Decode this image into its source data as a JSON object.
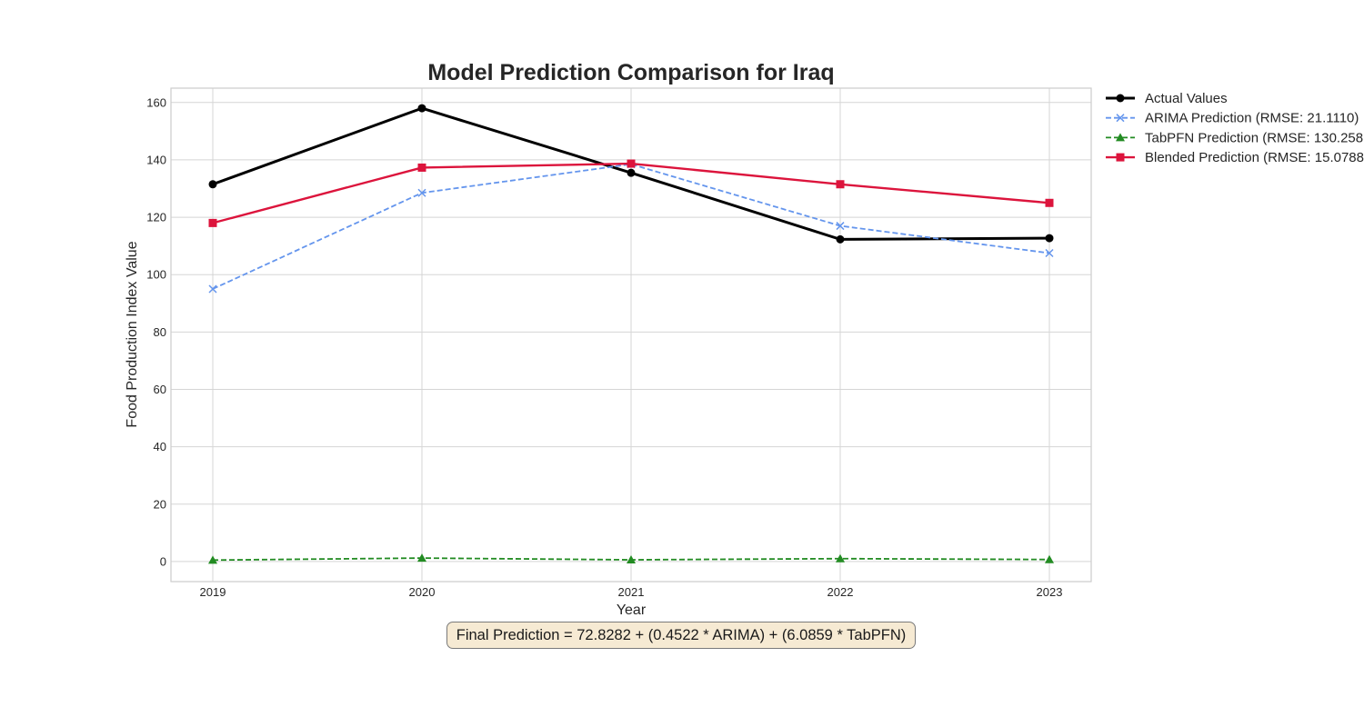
{
  "chart_data": {
    "type": "line",
    "title": "Model Prediction Comparison for Iraq",
    "xlabel": "Year",
    "ylabel": "Food Production Index Value",
    "x": [
      2019,
      2020,
      2021,
      2022,
      2023
    ],
    "x_tick_labels": [
      "2019",
      "2020",
      "2021",
      "2022",
      "2023"
    ],
    "xlim": [
      2018.8,
      2023.2
    ],
    "ylim": [
      -7,
      165
    ],
    "y_ticks": [
      0,
      20,
      40,
      60,
      80,
      100,
      120,
      140,
      160
    ],
    "y_tick_labels": [
      "0",
      "20",
      "40",
      "60",
      "80",
      "100",
      "120",
      "140",
      "160"
    ],
    "grid": true,
    "legend_position": "outside-top-right",
    "series": [
      {
        "name": "Actual Values",
        "values": [
          131.5,
          158.0,
          135.5,
          112.3,
          112.7
        ],
        "color": "#000000",
        "dash": "solid",
        "marker": "circle"
      },
      {
        "name": "ARIMA Prediction (RMSE: 21.1110)",
        "values": [
          95.0,
          128.5,
          138.5,
          117.0,
          107.5
        ],
        "color": "#6495ed",
        "dash": "dashed",
        "marker": "x"
      },
      {
        "name": "TabPFN Prediction (RMSE: 130.258",
        "values": [
          0.5,
          1.2,
          0.6,
          1.0,
          0.7
        ],
        "color": "#228b22",
        "dash": "dashed",
        "marker": "triangle"
      },
      {
        "name": "Blended Prediction (RMSE: 15.0788",
        "values": [
          118.0,
          137.3,
          138.7,
          131.5,
          125.0
        ],
        "color": "#dc143c",
        "dash": "solid",
        "marker": "square"
      }
    ],
    "annotation": "Final Prediction = 72.8282 + (0.4522 * ARIMA) + (6.0859 * TabPFN)"
  }
}
